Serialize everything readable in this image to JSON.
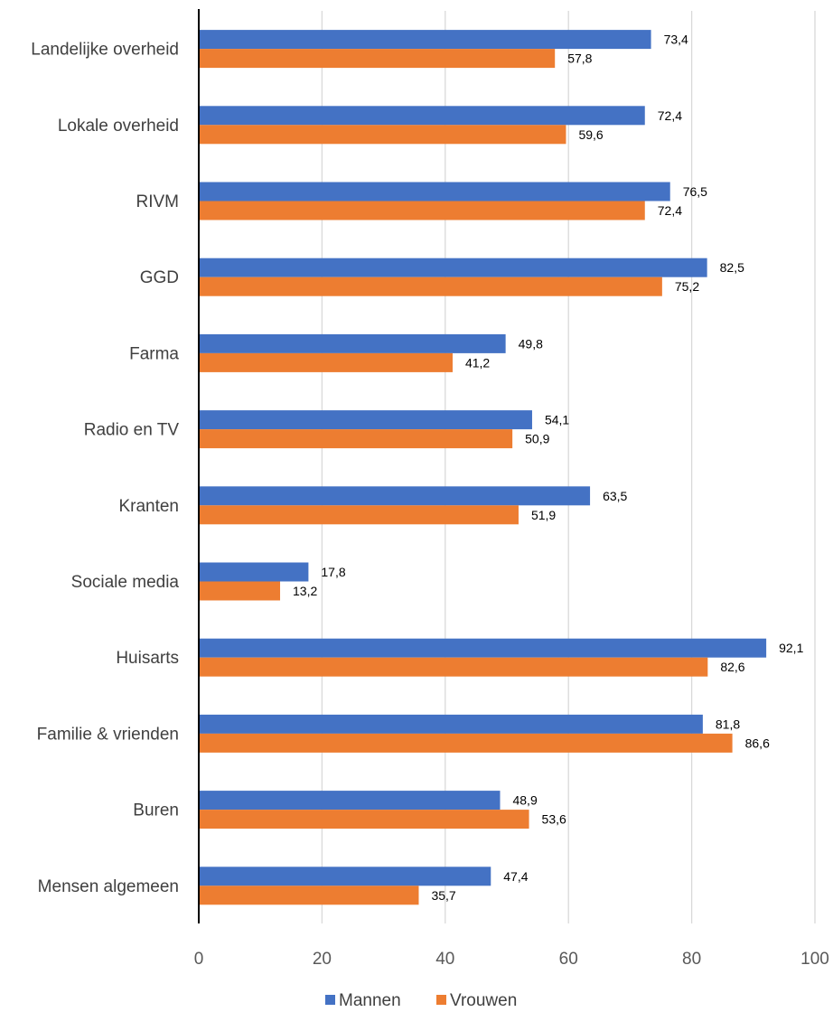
{
  "chart_data": {
    "type": "bar",
    "orientation": "horizontal",
    "categories": [
      "Landelijke overheid",
      "Lokale overheid",
      "RIVM",
      "GGD",
      "Farma",
      "Radio en TV",
      "Kranten",
      "Sociale media",
      "Huisarts",
      "Familie & vrienden",
      "Buren",
      "Mensen algemeen"
    ],
    "series": [
      {
        "name": "Mannen",
        "color": "#4472c4",
        "values": [
          73.4,
          72.4,
          76.5,
          82.5,
          49.8,
          54.1,
          63.5,
          17.8,
          92.1,
          81.8,
          48.9,
          47.4
        ],
        "labels": [
          "73,4",
          "72,4",
          "76,5",
          "82,5",
          "49,8",
          "54,1",
          "63,5",
          "17,8",
          "92,1",
          "81,8",
          "48,9",
          "47,4"
        ]
      },
      {
        "name": "Vrouwen",
        "color": "#ed7d31",
        "values": [
          57.8,
          59.6,
          72.4,
          75.2,
          41.2,
          50.9,
          51.9,
          13.2,
          82.6,
          86.6,
          53.6,
          35.7
        ],
        "labels": [
          "57,8",
          "59,6",
          "72,4",
          "75,2",
          "41,2",
          "50,9",
          "51,9",
          "13,2",
          "82,6",
          "86,6",
          "53,6",
          "35,7"
        ]
      }
    ],
    "xlim": [
      0,
      100
    ],
    "xticks": [
      0,
      20,
      40,
      60,
      80,
      100
    ],
    "xtick_labels": [
      "0",
      "20",
      "40",
      "60",
      "80",
      "100"
    ],
    "grid": "vertical",
    "gridline_color": "#d9d9d9",
    "legend_position": "bottom"
  }
}
